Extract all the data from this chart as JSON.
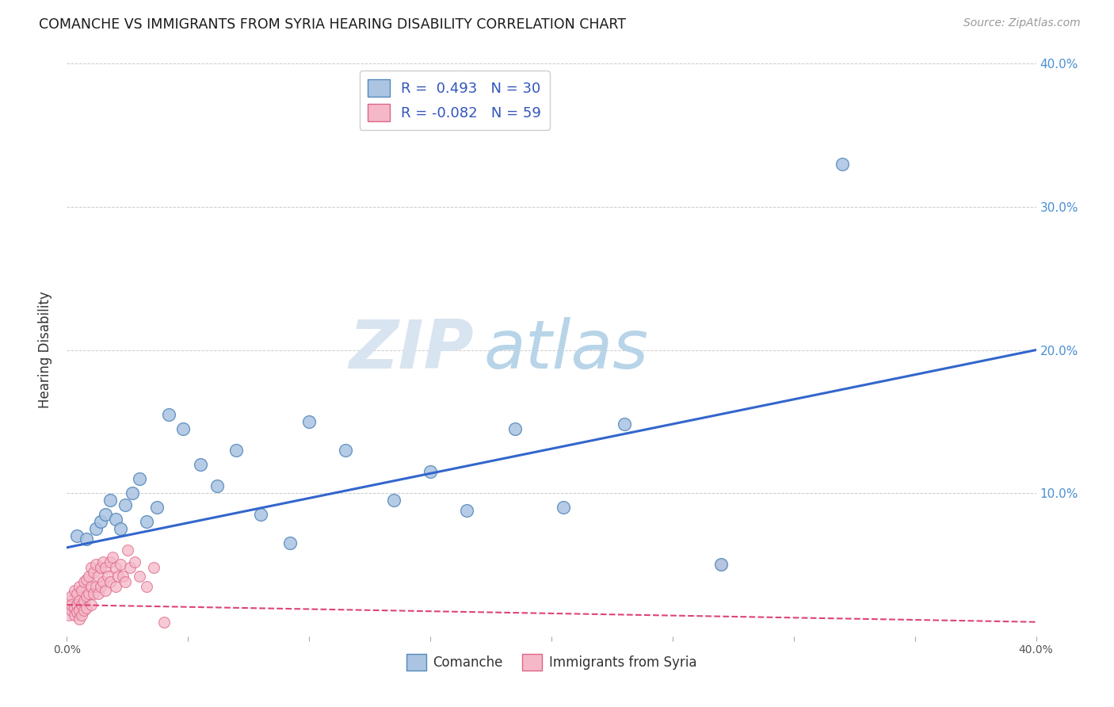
{
  "title": "COMANCHE VS IMMIGRANTS FROM SYRIA HEARING DISABILITY CORRELATION CHART",
  "source": "Source: ZipAtlas.com",
  "xlabel": "",
  "ylabel": "Hearing Disability",
  "xlim": [
    0,
    0.4
  ],
  "ylim": [
    0,
    0.4
  ],
  "background_color": "#ffffff",
  "watermark_zip": "ZIP",
  "watermark_atlas": "atlas",
  "comanche_color": "#aac4e2",
  "comanche_edge_color": "#5588bb",
  "syria_color": "#f5b8c8",
  "syria_edge_color": "#dd6688",
  "trend_blue_color": "#3366cc",
  "trend_pink_color": "#dd4477",
  "R_comanche": 0.493,
  "N_comanche": 30,
  "R_syria": -0.082,
  "N_syria": 59,
  "comanche_x": [
    0.004,
    0.008,
    0.012,
    0.014,
    0.016,
    0.018,
    0.02,
    0.022,
    0.024,
    0.027,
    0.03,
    0.033,
    0.037,
    0.042,
    0.048,
    0.055,
    0.062,
    0.07,
    0.08,
    0.092,
    0.1,
    0.115,
    0.135,
    0.15,
    0.165,
    0.185,
    0.205,
    0.23,
    0.27,
    0.32
  ],
  "comanche_y": [
    0.07,
    0.068,
    0.075,
    0.08,
    0.085,
    0.095,
    0.082,
    0.075,
    0.092,
    0.1,
    0.11,
    0.08,
    0.09,
    0.155,
    0.145,
    0.12,
    0.105,
    0.13,
    0.085,
    0.065,
    0.15,
    0.13,
    0.095,
    0.115,
    0.088,
    0.145,
    0.09,
    0.148,
    0.05,
    0.33
  ],
  "syria_x": [
    0.001,
    0.001,
    0.002,
    0.002,
    0.002,
    0.003,
    0.003,
    0.003,
    0.004,
    0.004,
    0.004,
    0.005,
    0.005,
    0.005,
    0.005,
    0.006,
    0.006,
    0.006,
    0.007,
    0.007,
    0.007,
    0.008,
    0.008,
    0.008,
    0.009,
    0.009,
    0.01,
    0.01,
    0.01,
    0.011,
    0.011,
    0.012,
    0.012,
    0.013,
    0.013,
    0.014,
    0.014,
    0.015,
    0.015,
    0.016,
    0.016,
    0.017,
    0.018,
    0.018,
    0.019,
    0.02,
    0.02,
    0.021,
    0.022,
    0.023,
    0.024,
    0.025,
    0.026,
    0.028,
    0.03,
    0.033,
    0.036,
    0.04,
    0.27
  ],
  "syria_y": [
    0.025,
    0.015,
    0.028,
    0.018,
    0.022,
    0.032,
    0.02,
    0.015,
    0.03,
    0.022,
    0.017,
    0.035,
    0.025,
    0.018,
    0.012,
    0.032,
    0.022,
    0.015,
    0.038,
    0.025,
    0.018,
    0.04,
    0.028,
    0.02,
    0.042,
    0.03,
    0.048,
    0.035,
    0.022,
    0.045,
    0.03,
    0.05,
    0.035,
    0.042,
    0.03,
    0.048,
    0.035,
    0.052,
    0.038,
    0.048,
    0.032,
    0.042,
    0.052,
    0.038,
    0.055,
    0.048,
    0.035,
    0.042,
    0.05,
    0.042,
    0.038,
    0.06,
    0.048,
    0.052,
    0.042,
    0.035,
    0.048,
    0.01,
    0.05
  ],
  "grid_color": "#cccccc",
  "trend_blue_x0": 0.0,
  "trend_blue_y0": 0.062,
  "trend_blue_x1": 0.4,
  "trend_blue_y1": 0.2,
  "trend_pink_x0": 0.0,
  "trend_pink_y0": 0.022,
  "trend_pink_x1": 0.4,
  "trend_pink_y1": 0.01
}
